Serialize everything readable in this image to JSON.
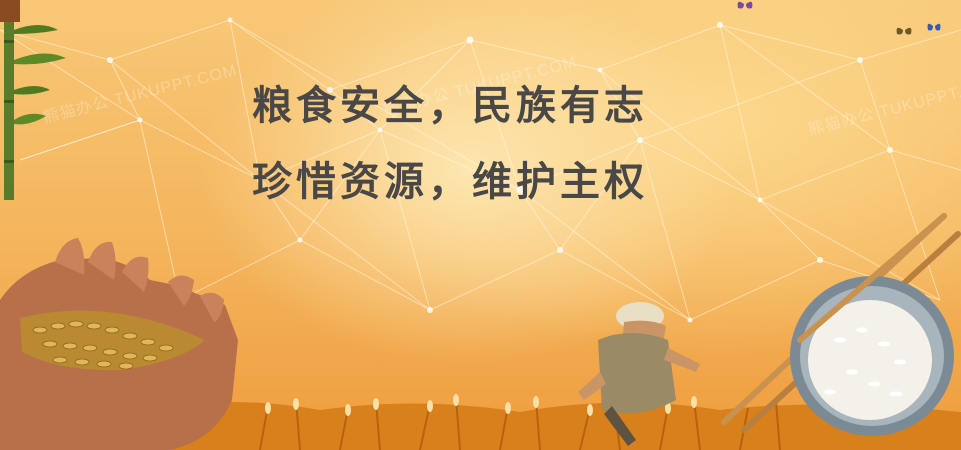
{
  "banner": {
    "headline_line1": "粮食安全，民族有志",
    "headline_line2": "珍惜资源，维护主权",
    "watermark": "熊猫办公 TUKUPPT.COM"
  },
  "colors": {
    "background_light": "#fde6b0",
    "background_mid": "#f4b45c",
    "background_dark": "#ee9c3c",
    "headline_text": "#4a4747"
  },
  "icons": [
    "bamboo-icon",
    "rice-in-hands-icon",
    "farmer-icon",
    "rice-bowl-icon",
    "chopsticks-icon",
    "butterfly-icon",
    "wheat-field-icon"
  ]
}
